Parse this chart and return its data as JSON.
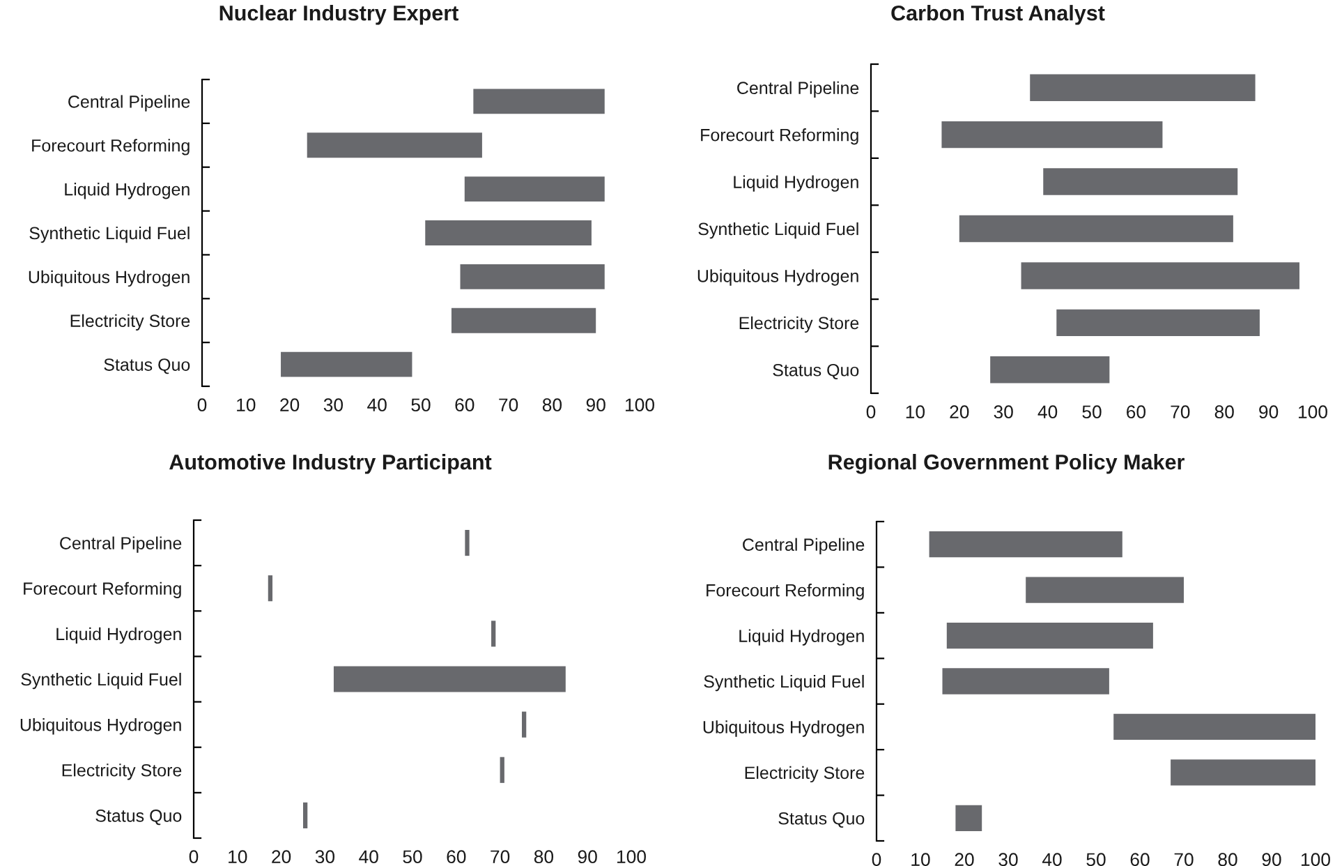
{
  "chart_data": [
    {
      "type": "bar",
      "orientation": "horizontal",
      "title": "Nuclear Industry Expert",
      "categories": [
        "Central Pipeline",
        "Forecourt Reforming",
        "Liquid Hydrogen",
        "Synthetic Liquid Fuel",
        "Ubiquitous Hydrogen",
        "Electricity Store",
        "Status Quo"
      ],
      "base": [
        62,
        24,
        60,
        51,
        59,
        57,
        18
      ],
      "values": [
        30,
        40,
        32,
        38,
        33,
        33,
        30
      ],
      "color": "#68696d",
      "xlim": [
        0,
        100
      ],
      "xticks": [
        0,
        10,
        20,
        30,
        40,
        50,
        60,
        70,
        80,
        90,
        100
      ]
    },
    {
      "type": "bar",
      "orientation": "horizontal",
      "title": "Carbon Trust Analyst",
      "categories": [
        "Central Pipeline",
        "Forecourt Reforming",
        "Liquid Hydrogen",
        "Synthetic Liquid Fuel",
        "Ubiquitous Hydrogen",
        "Electricity Store",
        "Status Quo"
      ],
      "base": [
        36,
        16,
        39,
        20,
        34,
        42,
        27
      ],
      "values": [
        51,
        50,
        44,
        62,
        63,
        46,
        27
      ],
      "color": "#68696d",
      "xlim": [
        0,
        100
      ],
      "xticks": [
        0,
        10,
        20,
        30,
        40,
        50,
        60,
        70,
        80,
        90,
        100
      ]
    },
    {
      "type": "bar",
      "orientation": "horizontal",
      "title": "Automotive Industry Participant",
      "categories": [
        "Central Pipeline",
        "Forecourt Reforming",
        "Liquid Hydrogen",
        "Synthetic Liquid Fuel",
        "Ubiquitous Hydrogen",
        "Electricity Store",
        "Status Quo"
      ],
      "base": [
        62,
        17,
        68,
        32,
        75,
        70,
        25
      ],
      "values": [
        1,
        1,
        1,
        53,
        1,
        1,
        1
      ],
      "color": "#68696d",
      "xlim": [
        0,
        100
      ],
      "xticks": [
        0,
        10,
        20,
        30,
        40,
        50,
        60,
        70,
        80,
        90,
        100
      ]
    },
    {
      "type": "bar",
      "orientation": "horizontal",
      "title": "Regional Government Policy Maker",
      "categories": [
        "Central Pipeline",
        "Forecourt Reforming",
        "Liquid Hydrogen",
        "Synthetic Liquid Fuel",
        "Ubiquitous Hydrogen",
        "Electricity Store",
        "Status Quo"
      ],
      "base": [
        12,
        34,
        16,
        15,
        54,
        67,
        18
      ],
      "values": [
        44,
        36,
        47,
        38,
        46,
        33,
        6
      ],
      "color": "#68696d",
      "xlim": [
        0,
        100
      ],
      "xticks": [
        0,
        10,
        20,
        30,
        40,
        50,
        60,
        70,
        80,
        90,
        100
      ]
    }
  ]
}
